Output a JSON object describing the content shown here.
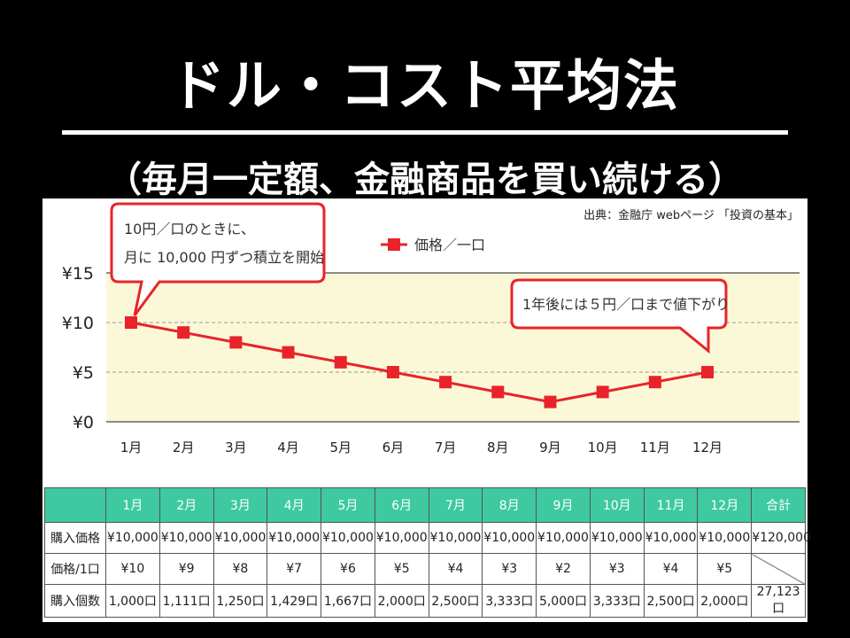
{
  "title": "ドル・コスト平均法",
  "subtitle": "（毎月一定額、金融商品を買い続ける）",
  "source": "出典：金融庁 webページ 「投資の基本」",
  "callouts": {
    "start_line1": "10円／口のときに、",
    "start_line2": "月に 10,000 円ずつ積立を開始",
    "end": "1年後には５円／口まで値下がり"
  },
  "chart_data": {
    "type": "line",
    "categories": [
      "1月",
      "2月",
      "3月",
      "4月",
      "5月",
      "6月",
      "7月",
      "8月",
      "9月",
      "10月",
      "11月",
      "12月"
    ],
    "series": [
      {
        "name": "価格／一口",
        "values": [
          10,
          9,
          8,
          7,
          6,
          5,
          4,
          3,
          2,
          3,
          4,
          5
        ],
        "color": "#e8232a"
      }
    ],
    "yticks": [
      "¥0",
      "¥5",
      "¥10",
      "¥15"
    ],
    "ylim": [
      0,
      15
    ],
    "legend": "top-center",
    "grid": true,
    "band_color": "#fbf8d8"
  },
  "table": {
    "headers": [
      "",
      "1月",
      "2月",
      "3月",
      "4月",
      "5月",
      "6月",
      "7月",
      "8月",
      "9月",
      "10月",
      "11月",
      "12月",
      "合計"
    ],
    "rows": [
      {
        "label": "購入価格",
        "cells": [
          "¥10,000",
          "¥10,000",
          "¥10,000",
          "¥10,000",
          "¥10,000",
          "¥10,000",
          "¥10,000",
          "¥10,000",
          "¥10,000",
          "¥10,000",
          "¥10,000",
          "¥10,000",
          "¥120,000"
        ]
      },
      {
        "label": "価格/1口",
        "cells": [
          "¥10",
          "¥9",
          "¥8",
          "¥7",
          "¥6",
          "¥5",
          "¥4",
          "¥3",
          "¥2",
          "¥3",
          "¥4",
          "¥5",
          ""
        ]
      },
      {
        "label": "購入個数",
        "cells": [
          "1,000口",
          "1,111口",
          "1,250口",
          "1,429口",
          "1,667口",
          "2,000口",
          "2,500口",
          "3,333口",
          "5,000口",
          "3,333口",
          "2,500口",
          "2,000口",
          "27,123口"
        ]
      }
    ]
  }
}
